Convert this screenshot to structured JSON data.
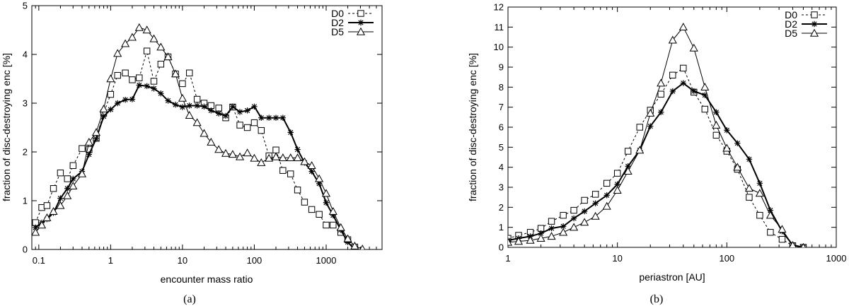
{
  "chart_data": [
    {
      "type": "line",
      "caption": "(a)",
      "xlabel": "encounter mass ratio",
      "ylabel": "fraction of disc-destroying enc [%]",
      "xscale": "log",
      "xlim": [
        0.08,
        6000
      ],
      "ylim": [
        0,
        5
      ],
      "xticks": [
        0.1,
        1,
        10,
        100,
        1000
      ],
      "xtick_labels": [
        "0.1",
        "1",
        "10",
        "100",
        "1000"
      ],
      "yticks": [
        0,
        1,
        2,
        3,
        4,
        5
      ],
      "ytick_labels": [
        "0",
        "1",
        "2",
        "3",
        "4",
        "5"
      ],
      "legend_position": "top-right",
      "series": [
        {
          "name": "D0",
          "marker": "square",
          "line": "dashed",
          "x": [
            0.09,
            0.11,
            0.13,
            0.16,
            0.2,
            0.25,
            0.3,
            0.4,
            0.5,
            0.63,
            0.8,
            1.0,
            1.25,
            1.6,
            2.0,
            2.5,
            3.2,
            4.0,
            5.0,
            6.3,
            8.0,
            10,
            12.5,
            16,
            20,
            25,
            32,
            40,
            50,
            63,
            80,
            100,
            125,
            160,
            200,
            250,
            320,
            400,
            500,
            630,
            800,
            1000,
            1250,
            1600,
            2000,
            2500
          ],
          "y": [
            0.55,
            0.86,
            0.9,
            1.25,
            1.57,
            1.45,
            1.72,
            2.07,
            2.05,
            2.28,
            2.8,
            3.18,
            3.57,
            3.62,
            3.48,
            3.52,
            4.07,
            3.45,
            3.8,
            3.95,
            3.6,
            3.4,
            3.62,
            3.08,
            3.0,
            2.95,
            2.9,
            2.7,
            2.92,
            2.55,
            2.5,
            2.6,
            2.44,
            1.92,
            2.04,
            1.62,
            1.55,
            1.22,
            0.97,
            0.82,
            0.72,
            0.5,
            0.5,
            0.35,
            0.2,
            0.05
          ]
        },
        {
          "name": "D2",
          "marker": "star",
          "line": "solid-thick",
          "x": [
            0.09,
            0.11,
            0.13,
            0.16,
            0.2,
            0.25,
            0.3,
            0.4,
            0.5,
            0.63,
            0.8,
            1.0,
            1.25,
            1.6,
            2.0,
            2.5,
            3.2,
            4.0,
            5.0,
            6.3,
            8.0,
            10,
            12.5,
            16,
            20,
            25,
            32,
            40,
            50,
            63,
            80,
            100,
            125,
            160,
            200,
            250,
            320,
            400,
            500,
            630,
            800,
            1000,
            1250,
            1600,
            2000,
            2500
          ],
          "y": [
            0.45,
            0.55,
            0.62,
            0.75,
            1.05,
            1.25,
            1.45,
            1.6,
            1.95,
            2.27,
            2.73,
            2.87,
            3.0,
            3.07,
            3.08,
            3.37,
            3.35,
            3.3,
            3.2,
            3.05,
            2.97,
            2.92,
            2.95,
            2.95,
            2.93,
            2.85,
            2.79,
            2.74,
            2.93,
            2.82,
            2.85,
            2.93,
            2.7,
            2.7,
            2.7,
            2.7,
            2.4,
            2.05,
            1.78,
            1.6,
            1.35,
            0.96,
            0.7,
            0.4,
            0.15,
            0.0
          ]
        },
        {
          "name": "D5",
          "marker": "triangle",
          "line": "solid",
          "x": [
            0.09,
            0.11,
            0.13,
            0.16,
            0.2,
            0.25,
            0.3,
            0.4,
            0.5,
            0.63,
            0.8,
            1.0,
            1.25,
            1.6,
            2.0,
            2.5,
            3.2,
            4.0,
            5.0,
            6.3,
            8.0,
            10,
            12.5,
            16,
            20,
            25,
            32,
            40,
            50,
            63,
            80,
            100,
            125,
            160,
            200,
            250,
            320,
            400,
            500,
            630,
            800,
            1000,
            1250,
            1600,
            2000,
            2500,
            3200
          ],
          "y": [
            0.35,
            0.5,
            0.65,
            0.78,
            0.9,
            1.1,
            1.3,
            1.55,
            2.2,
            2.4,
            2.88,
            3.5,
            4.02,
            4.22,
            4.35,
            4.55,
            4.5,
            4.32,
            4.15,
            3.95,
            3.6,
            3.1,
            2.75,
            2.6,
            2.38,
            2.2,
            2.05,
            1.97,
            1.95,
            1.9,
            1.98,
            1.87,
            1.78,
            1.87,
            1.9,
            1.88,
            1.88,
            1.88,
            1.8,
            1.72,
            1.45,
            1.15,
            0.78,
            0.45,
            0.22,
            0.07,
            0.01
          ]
        }
      ]
    },
    {
      "type": "line",
      "caption": "(b)",
      "xlabel": "periastron [AU]",
      "ylabel": "fraction of disc-destroying enc [%]",
      "xscale": "log",
      "xlim": [
        1,
        1000
      ],
      "ylim": [
        0,
        12
      ],
      "xticks": [
        1,
        10,
        100,
        1000
      ],
      "xtick_labels": [
        "1",
        "10",
        "100",
        "1000"
      ],
      "yticks": [
        0,
        1,
        2,
        3,
        4,
        5,
        6,
        7,
        8,
        9,
        10,
        11,
        12
      ],
      "ytick_labels": [
        "0",
        "1",
        "2",
        "3",
        "4",
        "5",
        "6",
        "7",
        "8",
        "9",
        "10",
        "11",
        "12"
      ],
      "legend_position": "top-right",
      "series": [
        {
          "name": "D0",
          "marker": "square",
          "line": "dashed",
          "x": [
            1,
            1.25,
            1.6,
            2.0,
            2.5,
            3.2,
            4.0,
            5.0,
            6.3,
            8.0,
            10,
            12.5,
            16,
            20,
            25,
            32,
            40,
            50,
            63,
            80,
            100,
            125,
            160,
            200,
            250,
            320,
            400,
            500
          ],
          "y": [
            0.45,
            0.6,
            0.75,
            0.95,
            1.3,
            1.6,
            1.85,
            2.35,
            2.65,
            3.2,
            3.7,
            4.8,
            6.0,
            6.85,
            7.65,
            8.6,
            8.95,
            7.75,
            6.9,
            5.6,
            4.8,
            3.9,
            2.5,
            1.6,
            0.75,
            0.4,
            0.08,
            0.0
          ]
        },
        {
          "name": "D2",
          "marker": "star",
          "line": "solid-thick",
          "x": [
            1,
            1.25,
            1.6,
            2.0,
            2.5,
            3.2,
            4.0,
            5.0,
            6.3,
            8.0,
            10,
            12.5,
            16,
            20,
            25,
            32,
            40,
            50,
            63,
            80,
            100,
            125,
            160,
            200,
            250,
            320,
            400,
            500
          ],
          "y": [
            0.35,
            0.45,
            0.55,
            0.7,
            0.95,
            1.05,
            1.45,
            1.8,
            2.2,
            2.6,
            3.15,
            4.05,
            4.85,
            6.05,
            6.75,
            7.8,
            8.2,
            7.8,
            7.6,
            6.75,
            5.85,
            5.2,
            4.4,
            3.2,
            1.85,
            0.8,
            0.12,
            0.0
          ]
        },
        {
          "name": "D5",
          "marker": "triangle",
          "line": "solid",
          "x": [
            1,
            1.25,
            1.6,
            2.0,
            2.5,
            3.2,
            4.0,
            5.0,
            6.3,
            8.0,
            10,
            12.5,
            16,
            20,
            25,
            32,
            40,
            50,
            63,
            80,
            100,
            125,
            160,
            200,
            250,
            320,
            400,
            500
          ],
          "y": [
            0.25,
            0.3,
            0.35,
            0.45,
            0.55,
            0.75,
            1.0,
            1.25,
            1.55,
            2.05,
            2.85,
            3.8,
            4.85,
            6.7,
            8.2,
            10.35,
            11.0,
            9.95,
            8.0,
            6.1,
            4.95,
            4.0,
            2.95,
            2.7,
            1.6,
            0.9,
            0.1,
            0.0
          ]
        }
      ]
    }
  ]
}
